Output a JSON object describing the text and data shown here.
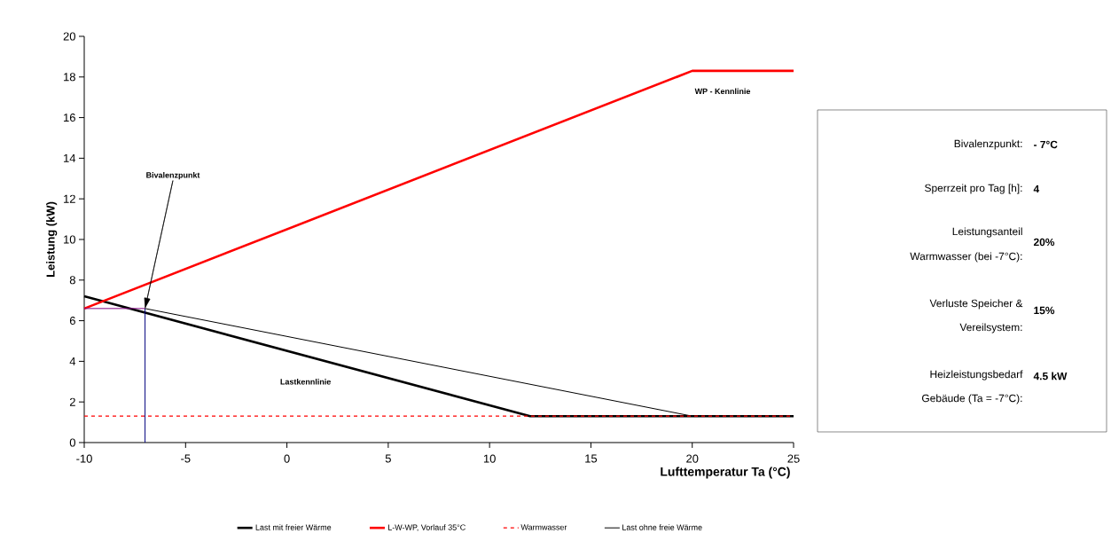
{
  "chart_data": {
    "type": "line",
    "xlabel": "Lufttemperatur Ta (°C)",
    "ylabel": "Leistung (kW)",
    "xlim": [
      -10,
      25
    ],
    "ylim": [
      0,
      20
    ],
    "xticks": [
      -10,
      -5,
      0,
      5,
      10,
      15,
      20,
      25
    ],
    "yticks": [
      0,
      2,
      4,
      6,
      8,
      10,
      12,
      14,
      16,
      18,
      20
    ],
    "grid": false,
    "legend": "bottom",
    "series": [
      {
        "name": "Last mit freier Wärme",
        "color": "#000000",
        "x": [
          -10,
          12,
          25
        ],
        "values": [
          7.2,
          1.3,
          1.3
        ]
      },
      {
        "name": "L-W-WP, Vorlauf 35°C",
        "color": "#ff0000",
        "x": [
          -10,
          20,
          25
        ],
        "values": [
          6.6,
          18.3,
          18.3
        ]
      },
      {
        "name": "Warmwasser",
        "color": "#ff0000",
        "line_style": "dashed",
        "x": [
          -10,
          25
        ],
        "values": [
          1.3,
          1.3
        ]
      },
      {
        "name": "Last ohne freie Wärme",
        "color": "#000000",
        "x": [
          -7,
          20,
          25
        ],
        "values": [
          6.6,
          1.3,
          1.3
        ]
      },
      {
        "color": "#800080",
        "x": [
          -10,
          -7
        ],
        "values": [
          6.6,
          6.6
        ]
      },
      {
        "color": "#000080",
        "x": [
          -7,
          -7
        ],
        "values": [
          0,
          6.6
        ]
      }
    ],
    "annotations": [
      {
        "text": "Bivalenzpunkt",
        "x": -7,
        "y": 6.6
      },
      "WP - Kennlinie",
      "Lastkennlinie",
      "Bivalenzpunkt:",
      "- 7°C",
      "Sperrzeit pro Tag [h]:",
      "4",
      "Leistungsanteil",
      "Warmwasser (bei -7°C):",
      "20%",
      "Verluste Speicher &",
      "Vereilsystem:",
      "15%",
      "Heizleistungsbedarf",
      "Gebäude (Ta = -7°C):",
      "4.5  kW"
    ]
  }
}
